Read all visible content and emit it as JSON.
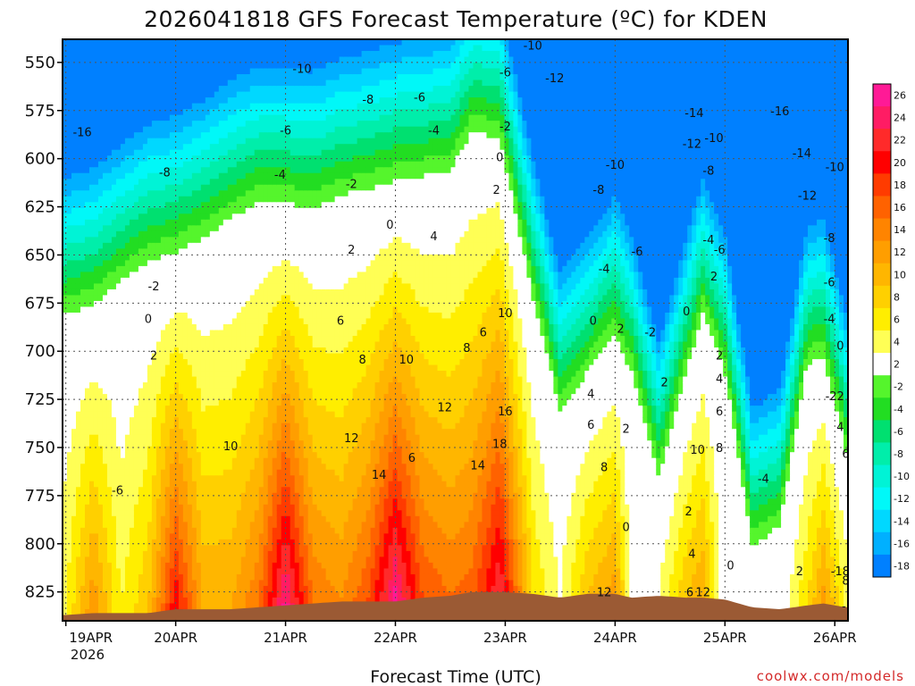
{
  "chart_data": {
    "type": "heatmap",
    "title": "2026041818 GFS Forecast Temperature (ºC) for KDEN",
    "xlabel": "Forecast Time (UTC)",
    "credit": "coolwx.com/models",
    "y_axis": {
      "ticks": [
        550,
        575,
        600,
        625,
        650,
        675,
        700,
        725,
        750,
        775,
        800,
        825
      ],
      "range": [
        840,
        538
      ],
      "units": "hPa"
    },
    "x_axis": {
      "ticks": [
        "19APR",
        "20APR",
        "21APR",
        "22APR",
        "23APR",
        "24APR",
        "25APR",
        "26APR"
      ],
      "year_label": "2026",
      "range_days": [
        -0.03,
        7.12
      ]
    },
    "grid": true,
    "surface_color": "#9b5a34",
    "colorbar": {
      "levels": [
        -18,
        -16,
        -14,
        -12,
        -10,
        -8,
        -6,
        -4,
        -2,
        2,
        4,
        6,
        8,
        10,
        12,
        14,
        16,
        18,
        20,
        22,
        24,
        26
      ],
      "tick_labels": [
        "26",
        "24",
        "22",
        "20",
        "18",
        "16",
        "14",
        "12",
        "10",
        "8",
        "6",
        "4",
        "2",
        "-2",
        "-4",
        "-6",
        "-8",
        "-10",
        "-12",
        "-14",
        "-16",
        "-18"
      ],
      "colors": [
        "#ff1a96",
        "#ff1c64",
        "#ff2a2a",
        "#ff0000",
        "#ff3b00",
        "#ff6200",
        "#ff8400",
        "#ff9e00",
        "#ffb600",
        "#ffd000",
        "#ffee00",
        "#ffff55",
        "#ffffff",
        "#55f52c",
        "#22dd22",
        "#00e070",
        "#00eeaa",
        "#00f3d6",
        "#00f8f8",
        "#00d8ff",
        "#00b0ff",
        "#0080ff"
      ]
    },
    "columns": [
      {
        "t": 0.0,
        "sfc": 837,
        "f0": 690,
        "tsfc": 4
      },
      {
        "t": 0.25,
        "sfc": 836,
        "f0": 685,
        "tsfc": 12
      },
      {
        "t": 0.5,
        "sfc": 836,
        "f0": 673,
        "tsfc": 4
      },
      {
        "t": 0.75,
        "sfc": 836,
        "f0": 662,
        "tsfc": 8
      },
      {
        "t": 1.0,
        "sfc": 834,
        "f0": 658,
        "tsfc": 20
      },
      {
        "t": 1.25,
        "sfc": 834,
        "f0": 650,
        "tsfc": 10
      },
      {
        "t": 1.5,
        "sfc": 834,
        "f0": 640,
        "tsfc": 10
      },
      {
        "t": 1.75,
        "sfc": 833,
        "f0": 632,
        "tsfc": 14
      },
      {
        "t": 2.0,
        "sfc": 832,
        "f0": 632,
        "tsfc": 25
      },
      {
        "t": 2.25,
        "sfc": 831,
        "f0": 635,
        "tsfc": 14
      },
      {
        "t": 2.5,
        "sfc": 830,
        "f0": 628,
        "tsfc": 12
      },
      {
        "t": 2.75,
        "sfc": 830,
        "f0": 625,
        "tsfc": 16
      },
      {
        "t": 3.0,
        "sfc": 830,
        "f0": 620,
        "tsfc": 25
      },
      {
        "t": 3.25,
        "sfc": 828,
        "f0": 618,
        "tsfc": 16
      },
      {
        "t": 3.5,
        "sfc": 827,
        "f0": 615,
        "tsfc": 14
      },
      {
        "t": 3.7,
        "sfc": 825,
        "f0": 595,
        "tsfc": 15
      },
      {
        "t": 3.95,
        "sfc": 825,
        "f0": 598,
        "tsfc": 22
      },
      {
        "t": 4.25,
        "sfc": 826,
        "f0": 680,
        "tsfc": 6
      },
      {
        "t": 4.5,
        "sfc": 828,
        "f0": 740,
        "tsfc": 2
      },
      {
        "t": 4.75,
        "sfc": 826,
        "f0": 720,
        "tsfc": 8
      },
      {
        "t": 5.0,
        "sfc": 826,
        "f0": 700,
        "tsfc": 11
      },
      {
        "t": 5.15,
        "sfc": 828,
        "f0": 720,
        "tsfc": 1
      },
      {
        "t": 5.4,
        "sfc": 827,
        "f0": 775,
        "tsfc": 2
      },
      {
        "t": 5.65,
        "sfc": 828,
        "f0": 720,
        "tsfc": 8
      },
      {
        "t": 5.8,
        "sfc": 828,
        "f0": 690,
        "tsfc": 10
      },
      {
        "t": 6.0,
        "sfc": 829,
        "f0": 720,
        "tsfc": 0
      },
      {
        "t": 6.25,
        "sfc": 833,
        "f0": 810,
        "tsfc": -1
      },
      {
        "t": 6.5,
        "sfc": 834,
        "f0": 800,
        "tsfc": 0
      },
      {
        "t": 6.75,
        "sfc": 832,
        "f0": 715,
        "tsfc": 6
      },
      {
        "t": 6.9,
        "sfc": 831,
        "f0": 712,
        "tsfc": 11
      },
      {
        "t": 7.1,
        "sfc": 833,
        "f0": 760,
        "tsfc": 4
      }
    ],
    "contour_labels": [
      {
        "text": "-10",
        "t": 2.15,
        "p": 553
      },
      {
        "text": "-8",
        "t": 2.75,
        "p": 569
      },
      {
        "text": "-6",
        "t": 3.22,
        "p": 568
      },
      {
        "text": "-10",
        "t": 4.25,
        "p": 541
      },
      {
        "text": "-6",
        "t": 4.0,
        "p": 555
      },
      {
        "text": "-12",
        "t": 4.45,
        "p": 558
      },
      {
        "text": "-16",
        "t": 0.15,
        "p": 586
      },
      {
        "text": "-6",
        "t": 2.0,
        "p": 585
      },
      {
        "text": "-4",
        "t": 3.35,
        "p": 585
      },
      {
        "text": "-2",
        "t": 4.0,
        "p": 583
      },
      {
        "text": "-14",
        "t": 5.72,
        "p": 576
      },
      {
        "text": "-16",
        "t": 6.5,
        "p": 575
      },
      {
        "text": "-12",
        "t": 5.7,
        "p": 592
      },
      {
        "text": "-10",
        "t": 5.9,
        "p": 589
      },
      {
        "text": "-14",
        "t": 6.7,
        "p": 597
      },
      {
        "text": "-8",
        "t": 0.9,
        "p": 607
      },
      {
        "text": "-4",
        "t": 1.95,
        "p": 608
      },
      {
        "text": "-2",
        "t": 2.6,
        "p": 613
      },
      {
        "text": "0",
        "t": 3.95,
        "p": 599
      },
      {
        "text": "-10",
        "t": 5.0,
        "p": 603
      },
      {
        "text": "-8",
        "t": 5.85,
        "p": 606
      },
      {
        "text": "-10",
        "t": 7.0,
        "p": 604
      },
      {
        "text": "2",
        "t": 3.92,
        "p": 616
      },
      {
        "text": "-8",
        "t": 4.85,
        "p": 616
      },
      {
        "text": "-12",
        "t": 6.75,
        "p": 619
      },
      {
        "text": "0",
        "t": 2.95,
        "p": 634
      },
      {
        "text": "4",
        "t": 3.35,
        "p": 640
      },
      {
        "text": "-8",
        "t": 6.95,
        "p": 641
      },
      {
        "text": "-4",
        "t": 5.85,
        "p": 642
      },
      {
        "text": "-6",
        "t": 5.2,
        "p": 648
      },
      {
        "text": "-6",
        "t": 5.95,
        "p": 647
      },
      {
        "text": "2",
        "t": 2.6,
        "p": 647
      },
      {
        "text": "-4",
        "t": 4.9,
        "p": 657
      },
      {
        "text": "2",
        "t": 5.9,
        "p": 661
      },
      {
        "text": "-6",
        "t": 6.95,
        "p": 664
      },
      {
        "text": "-2",
        "t": 0.8,
        "p": 666
      },
      {
        "text": "0",
        "t": 5.65,
        "p": 679
      },
      {
        "text": "6",
        "t": 2.5,
        "p": 684
      },
      {
        "text": "10",
        "t": 4.0,
        "p": 680
      },
      {
        "text": "0",
        "t": 0.75,
        "p": 683
      },
      {
        "text": "0",
        "t": 4.8,
        "p": 684
      },
      {
        "text": "-4",
        "t": 6.95,
        "p": 683
      },
      {
        "text": "2",
        "t": 5.05,
        "p": 688
      },
      {
        "text": "6",
        "t": 3.8,
        "p": 690
      },
      {
        "text": "-2",
        "t": 5.32,
        "p": 690
      },
      {
        "text": "2",
        "t": 5.95,
        "p": 702
      },
      {
        "text": "0",
        "t": 7.05,
        "p": 697
      },
      {
        "text": "8",
        "t": 3.65,
        "p": 698
      },
      {
        "text": "2",
        "t": 0.8,
        "p": 702
      },
      {
        "text": "8",
        "t": 2.7,
        "p": 704
      },
      {
        "text": "10",
        "t": 3.1,
        "p": 704
      },
      {
        "text": "4",
        "t": 5.95,
        "p": 714
      },
      {
        "text": "2",
        "t": 5.45,
        "p": 716
      },
      {
        "text": "4",
        "t": 4.78,
        "p": 722
      },
      {
        "text": "-22",
        "t": 7.0,
        "p": 723
      },
      {
        "text": "12",
        "t": 3.45,
        "p": 729
      },
      {
        "text": "6",
        "t": 5.95,
        "p": 731
      },
      {
        "text": "16",
        "t": 4.0,
        "p": 731
      },
      {
        "text": "6",
        "t": 4.78,
        "p": 738
      },
      {
        "text": "4",
        "t": 7.05,
        "p": 739
      },
      {
        "text": "2",
        "t": 5.1,
        "p": 740
      },
      {
        "text": "12",
        "t": 2.6,
        "p": 745
      },
      {
        "text": "18",
        "t": 3.95,
        "p": 748
      },
      {
        "text": "10",
        "t": 1.5,
        "p": 749
      },
      {
        "text": "10",
        "t": 5.75,
        "p": 751
      },
      {
        "text": "8",
        "t": 5.95,
        "p": 750
      },
      {
        "text": "6",
        "t": 7.1,
        "p": 753
      },
      {
        "text": "6",
        "t": 3.15,
        "p": 755
      },
      {
        "text": "14",
        "t": 3.75,
        "p": 759
      },
      {
        "text": "8",
        "t": 4.9,
        "p": 760
      },
      {
        "text": "14",
        "t": 2.85,
        "p": 764
      },
      {
        "text": "-4",
        "t": 6.35,
        "p": 766
      },
      {
        "text": "-6",
        "t": 0.47,
        "p": 772
      },
      {
        "text": "2",
        "t": 5.67,
        "p": 783
      },
      {
        "text": "0",
        "t": 5.1,
        "p": 791
      },
      {
        "text": "4",
        "t": 5.7,
        "p": 805
      },
      {
        "text": "0",
        "t": 6.05,
        "p": 811
      },
      {
        "text": "2",
        "t": 6.68,
        "p": 814
      },
      {
        "text": "-18",
        "t": 7.05,
        "p": 814
      },
      {
        "text": "8",
        "t": 7.1,
        "p": 819
      },
      {
        "text": "6",
        "t": 5.68,
        "p": 825
      },
      {
        "text": "12",
        "t": 5.8,
        "p": 825
      },
      {
        "text": "12",
        "t": 4.9,
        "p": 825
      },
      {
        "text": "-10",
        "t": 7.15,
        "p": 832
      }
    ]
  }
}
